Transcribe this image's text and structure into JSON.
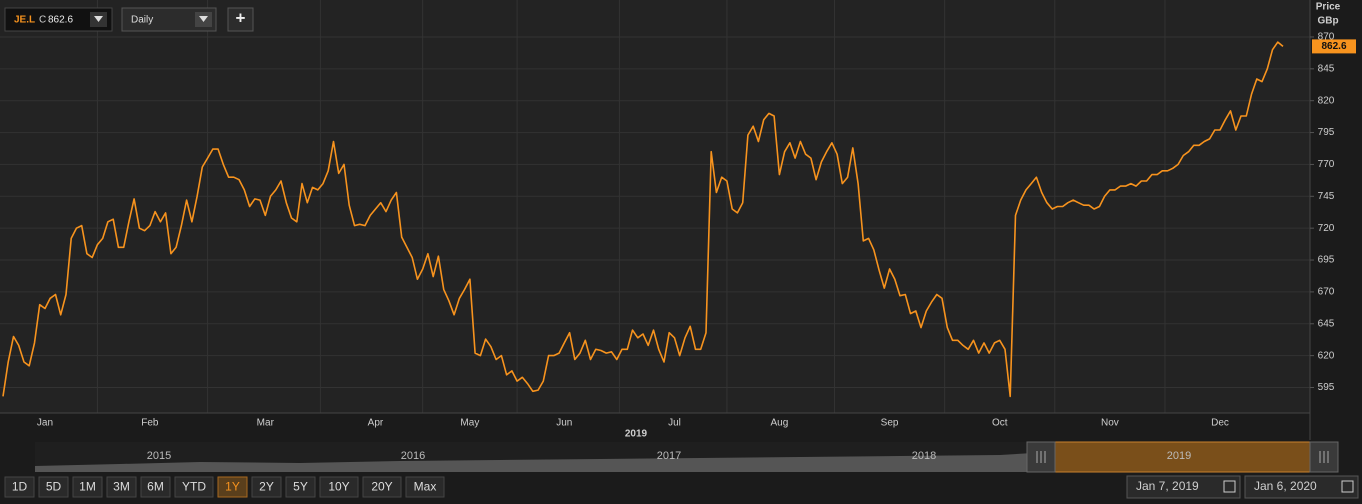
{
  "toolbar": {
    "symbol": "JE.L",
    "close_prefix": "C",
    "close": 862.6,
    "interval": "Daily",
    "add": "+"
  },
  "chart_data": {
    "type": "line",
    "price_label": "Price",
    "currency": "GBp",
    "year_label": "2019",
    "categories": [
      null,
      null,
      null,
      null,
      null,
      null,
      null,
      null,
      "Jan",
      null,
      null,
      null,
      null,
      null,
      null,
      null,
      null,
      null,
      null,
      null,
      null,
      null,
      null,
      null,
      null,
      null,
      null,
      null,
      "Feb",
      null,
      null,
      null,
      null,
      null,
      null,
      null,
      null,
      null,
      null,
      null,
      null,
      null,
      null,
      null,
      null,
      null,
      null,
      null,
      null,
      null,
      "Mar",
      null,
      null,
      null,
      null,
      null,
      null,
      null,
      null,
      null,
      null,
      null,
      null,
      null,
      null,
      null,
      null,
      null,
      null,
      null,
      null,
      "Apr",
      null,
      null,
      null,
      null,
      null,
      null,
      null,
      null,
      null,
      null,
      null,
      null,
      null,
      null,
      null,
      null,
      null,
      "May",
      null,
      null,
      null,
      null,
      null,
      null,
      null,
      null,
      null,
      null,
      null,
      null,
      null,
      null,
      null,
      null,
      null,
      "Jun",
      null,
      null,
      null,
      null,
      null,
      null,
      null,
      null,
      null,
      null,
      null,
      null,
      null,
      null,
      null,
      null,
      null,
      null,
      null,
      null,
      "Jul",
      null,
      null,
      null,
      null,
      null,
      null,
      null,
      null,
      null,
      null,
      null,
      null,
      null,
      null,
      null,
      null,
      null,
      null,
      null,
      "Aug",
      null,
      null,
      null,
      null,
      null,
      null,
      null,
      null,
      null,
      null,
      null,
      null,
      null,
      null,
      null,
      null,
      null,
      null,
      null,
      null,
      "Sep",
      null,
      null,
      null,
      null,
      null,
      null,
      null,
      null,
      null,
      null,
      null,
      null,
      null,
      null,
      null,
      null,
      null,
      null,
      null,
      null,
      "Oct",
      null,
      null,
      null,
      null,
      null,
      null,
      null,
      null,
      null,
      null,
      null,
      null,
      null,
      null,
      null,
      null,
      null,
      null,
      null,
      null,
      "Nov",
      null,
      null,
      null,
      null,
      null,
      null,
      null,
      null,
      null,
      null,
      null,
      null,
      null,
      null,
      null,
      null,
      null,
      null,
      null,
      null,
      "Dec",
      null,
      null,
      null,
      null,
      null,
      null,
      null,
      null,
      null,
      null,
      null,
      null
    ],
    "series": [
      {
        "name": "JE.L",
        "color": "#f7931e",
        "values": [
          588,
          615,
          635,
          628,
          615,
          612,
          630,
          660,
          657,
          665,
          668,
          652,
          668,
          712,
          720,
          722,
          700,
          697,
          707,
          712,
          725,
          727,
          705,
          705,
          725,
          743,
          720,
          718,
          722,
          733,
          725,
          732,
          700,
          705,
          722,
          742,
          725,
          745,
          768,
          775,
          782,
          782,
          770,
          760,
          760,
          758,
          750,
          737,
          743,
          742,
          730,
          745,
          750,
          757,
          740,
          728,
          725,
          755,
          740,
          752,
          750,
          755,
          765,
          788,
          763,
          770,
          738,
          722,
          723,
          722,
          730,
          735,
          740,
          733,
          742,
          748,
          713,
          705,
          697,
          680,
          688,
          700,
          682,
          698,
          672,
          663,
          652,
          665,
          672,
          680,
          622,
          620,
          633,
          627,
          617,
          620,
          605,
          608,
          600,
          603,
          598,
          592,
          593,
          600,
          620,
          620,
          622,
          630,
          638,
          617,
          622,
          632,
          617,
          625,
          624,
          622,
          623,
          617,
          625,
          625,
          640,
          634,
          637,
          628,
          640,
          625,
          615,
          638,
          634,
          620,
          634,
          643,
          625,
          625,
          638,
          780,
          748,
          760,
          757,
          735,
          732,
          740,
          793,
          800,
          788,
          805,
          810,
          808,
          762,
          780,
          787,
          775,
          788,
          778,
          775,
          758,
          772,
          780,
          787,
          778,
          755,
          760,
          783,
          755,
          710,
          712,
          703,
          687,
          673,
          688,
          680,
          667,
          668,
          653,
          655,
          642,
          655,
          662,
          668,
          665,
          642,
          632,
          632,
          628,
          625,
          632,
          622,
          630,
          622,
          630,
          632,
          625,
          588,
          730,
          742,
          750,
          755,
          760,
          748,
          740,
          735,
          737,
          737,
          740,
          742,
          740,
          738,
          738,
          735,
          737,
          745,
          750,
          750,
          753,
          753,
          755,
          753,
          757,
          757,
          762,
          762,
          765,
          765,
          767,
          770,
          777,
          780,
          785,
          785,
          788,
          790,
          797,
          797,
          805,
          812,
          797,
          808,
          808,
          825,
          837,
          835,
          845,
          860,
          866,
          862.6
        ]
      }
    ],
    "ylim": [
      575,
      899
    ],
    "yticks": [
      595,
      620,
      645,
      670,
      695,
      720,
      745,
      770,
      795,
      820,
      845,
      870
    ],
    "grid": true
  },
  "navigator": {
    "years": [
      "2015",
      "2016",
      "2017",
      "2018",
      "2019"
    ]
  },
  "ranges": {
    "buttons": [
      "1D",
      "5D",
      "1M",
      "3M",
      "6M",
      "YTD",
      "1Y",
      "2Y",
      "5Y",
      "10Y",
      "20Y",
      "Max"
    ],
    "active": "1Y"
  },
  "dates": {
    "from": "Jan 7, 2019",
    "to": "Jan 6, 2020"
  }
}
